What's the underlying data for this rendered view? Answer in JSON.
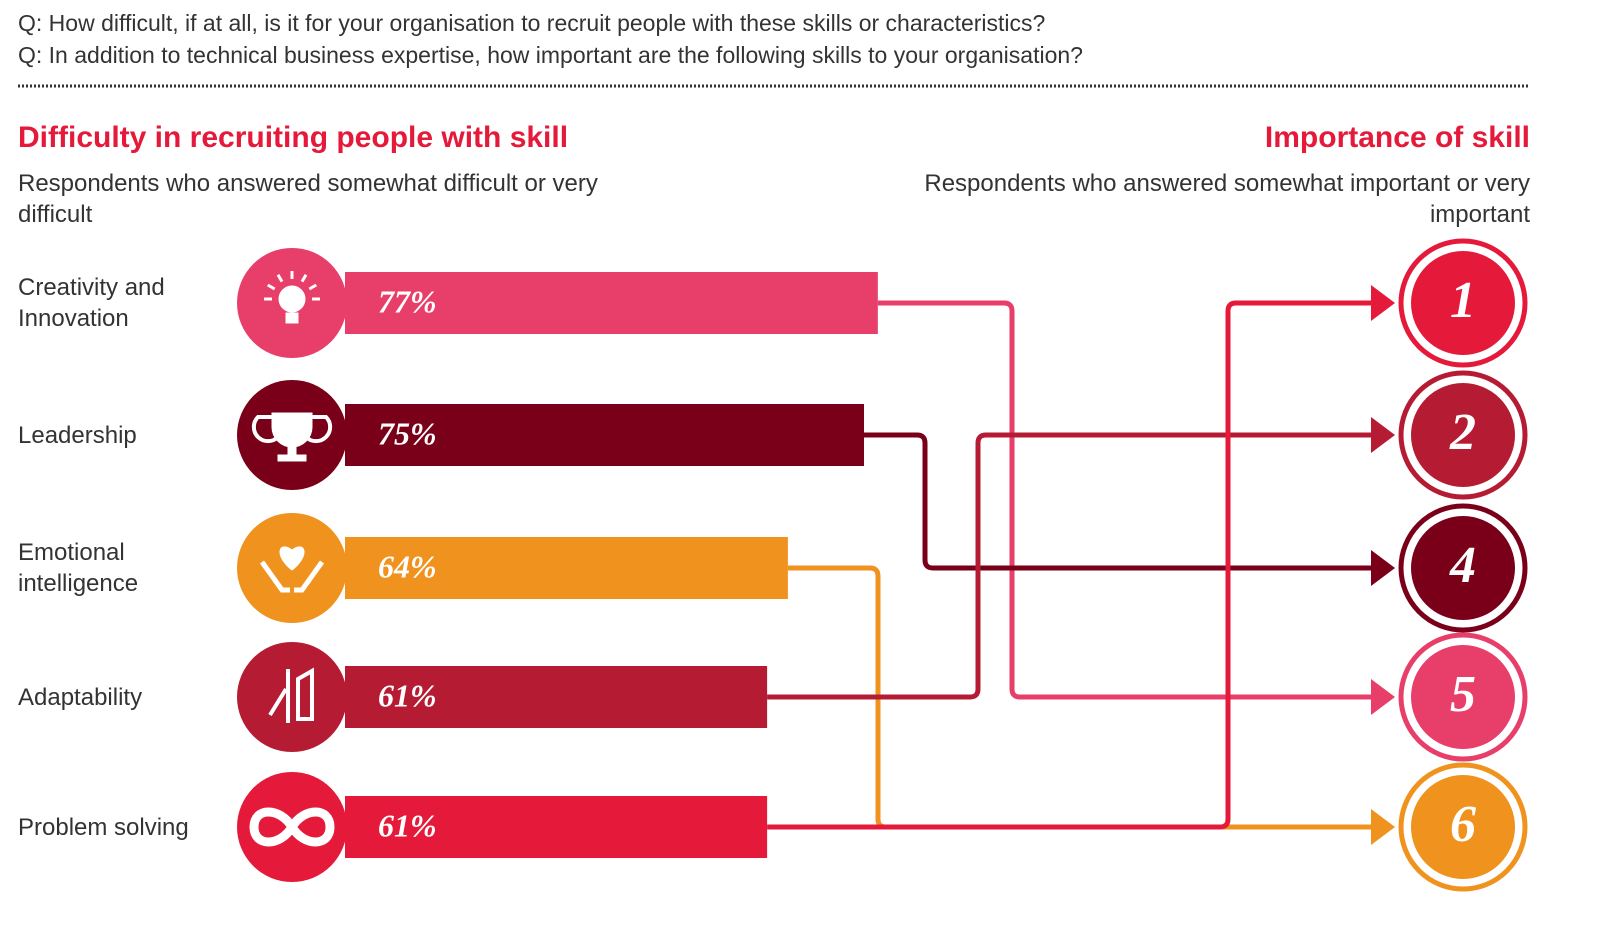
{
  "chart_data": {
    "type": "bar",
    "questions": [
      "Q: How difficult, if at all, is it for your organisation to recruit people with these skills or characteristics?",
      "Q: In addition to technical business expertise, how important are the following skills to your organisation?"
    ],
    "title": "Difficulty in recruiting people with skill",
    "subtitle": "Respondents who answered somewhat difficult or very difficult",
    "right_title": "Importance of skill",
    "right_subtitle": "Respondents who answered somewhat important or very important",
    "categories": [
      "Creativity and Innovation",
      "Leadership",
      "Emotional intelligence",
      "Adaptability",
      "Problem solving"
    ],
    "values": [
      77,
      75,
      64,
      61,
      61
    ],
    "value_labels": [
      "77%",
      "75%",
      "64%",
      "61%",
      "61%"
    ],
    "colors": [
      "#e83e6a",
      "#7a0019",
      "#f0921e",
      "#b51c33",
      "#e5193a"
    ],
    "importance_ranks": [
      5,
      4,
      6,
      2,
      1
    ]
  }
}
